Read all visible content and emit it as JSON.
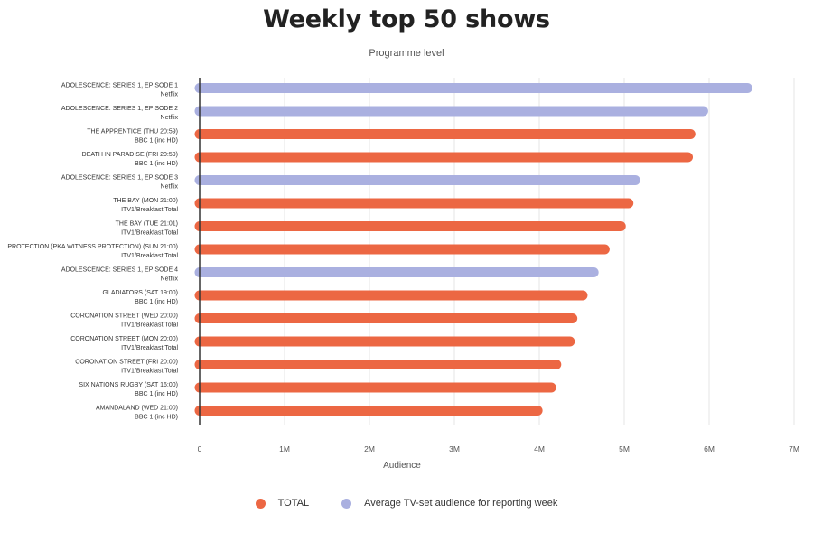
{
  "colors": {
    "total": "#ec6743",
    "avg": "#aab0e0",
    "grid": "#e4e4e4",
    "axis": "#333333",
    "text": "#333333"
  },
  "chart_data": {
    "type": "bar",
    "orientation": "horizontal",
    "title": "Weekly top 50 shows",
    "subtitle": "Programme level",
    "xlabel": "Audience",
    "ylabel": "",
    "xlim": [
      0,
      7000000
    ],
    "x_ticks": [
      0,
      1000000,
      2000000,
      3000000,
      4000000,
      5000000,
      6000000,
      7000000
    ],
    "x_tick_labels": [
      "0",
      "1M",
      "2M",
      "3M",
      "4M",
      "5M",
      "6M",
      "7M"
    ],
    "grid": true,
    "legend_position": "bottom",
    "legend": [
      {
        "key": "total",
        "label": "TOTAL"
      },
      {
        "key": "avg",
        "label": "Average TV-set audience for reporting week"
      }
    ],
    "rows": [
      {
        "programme": "ADOLESCENCE: SERIES 1, EPISODE 1",
        "channel": "Netflix",
        "series": "avg",
        "value": 6450000
      },
      {
        "programme": "ADOLESCENCE: SERIES 1, EPISODE 2",
        "channel": "Netflix",
        "series": "avg",
        "value": 5930000
      },
      {
        "programme": "THE APPRENTICE (THU 20:59)",
        "channel": "BBC 1 (inc HD)",
        "series": "total",
        "value": 5780000
      },
      {
        "programme": "DEATH IN PARADISE (FRI 20:59)",
        "channel": "BBC 1 (inc HD)",
        "series": "total",
        "value": 5750000
      },
      {
        "programme": "ADOLESCENCE: SERIES 1, EPISODE 3",
        "channel": "Netflix",
        "series": "avg",
        "value": 5130000
      },
      {
        "programme": "THE BAY (MON 21:00)",
        "channel": "ITV1/Breakfast Total",
        "series": "total",
        "value": 5050000
      },
      {
        "programme": "THE BAY (TUE 21:01)",
        "channel": "ITV1/Breakfast Total",
        "series": "total",
        "value": 4960000
      },
      {
        "programme": "PROTECTION (PKA WITNESS PROTECTION) (SUN 21:00)",
        "channel": "ITV1/Breakfast Total",
        "series": "total",
        "value": 4770000
      },
      {
        "programme": "ADOLESCENCE: SERIES 1, EPISODE 4",
        "channel": "Netflix",
        "series": "avg",
        "value": 4640000
      },
      {
        "programme": "GLADIATORS (SAT 19:00)",
        "channel": "BBC 1 (inc HD)",
        "series": "total",
        "value": 4510000
      },
      {
        "programme": "CORONATION STREET (WED 20:00)",
        "channel": "ITV1/Breakfast Total",
        "series": "total",
        "value": 4390000
      },
      {
        "programme": "CORONATION STREET (MON 20:00)",
        "channel": "ITV1/Breakfast Total",
        "series": "total",
        "value": 4360000
      },
      {
        "programme": "CORONATION STREET (FRI 20:00)",
        "channel": "ITV1/Breakfast Total",
        "series": "total",
        "value": 4200000
      },
      {
        "programme": "SIX NATIONS RUGBY (SAT 16:00)",
        "channel": "BBC 1 (inc HD)",
        "series": "total",
        "value": 4140000
      },
      {
        "programme": "AMANDALAND (WED 21:00)",
        "channel": "BBC 1 (inc HD)",
        "series": "total",
        "value": 3980000
      }
    ]
  }
}
